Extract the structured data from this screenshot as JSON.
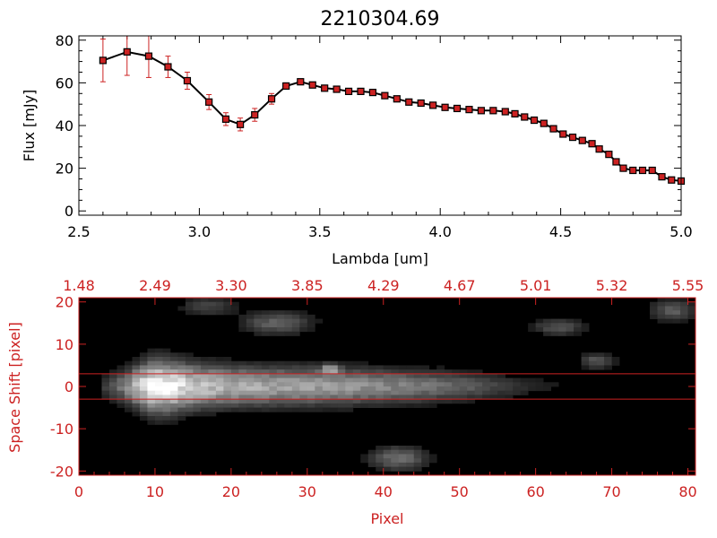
{
  "chart_data": [
    {
      "type": "line",
      "title": "2210304.69",
      "xlabel": "Lambda [um]",
      "ylabel": "Flux [mJy]",
      "xlim": [
        2.5,
        5.0
      ],
      "ylim": [
        -2,
        82
      ],
      "xticks": [
        "2.5",
        "3.0",
        "3.5",
        "4.0",
        "4.5",
        "5.0"
      ],
      "yticks": [
        "0",
        "20",
        "40",
        "60",
        "80"
      ],
      "grid": false,
      "line_color": "#000000",
      "marker_color": "#cc2222",
      "errorbar_color": "#cc2222",
      "series": [
        {
          "x": [
            2.6,
            2.7,
            2.79,
            2.87,
            2.95,
            3.04,
            3.11,
            3.17,
            3.23,
            3.3,
            3.36,
            3.42,
            3.47,
            3.52,
            3.57,
            3.62,
            3.67,
            3.72,
            3.77,
            3.82,
            3.87,
            3.92,
            3.97,
            4.02,
            4.07,
            4.12,
            4.17,
            4.22,
            4.27,
            4.31,
            4.35,
            4.39,
            4.43,
            4.47,
            4.51,
            4.55,
            4.59,
            4.63,
            4.66,
            4.7,
            4.73,
            4.76,
            4.8,
            4.84,
            4.88,
            4.92,
            4.96,
            5.0
          ],
          "y": [
            70.5,
            74.5,
            72.5,
            67.5,
            61,
            51,
            43,
            40.5,
            45,
            52.5,
            58.5,
            60.5,
            59,
            57.5,
            57,
            56,
            56,
            55.5,
            54,
            52.5,
            51,
            50.5,
            49.5,
            48.5,
            48,
            47.5,
            47,
            47,
            46.5,
            45.5,
            44,
            42.5,
            41,
            38.5,
            36,
            34.5,
            33,
            31.5,
            29,
            26.5,
            23,
            20,
            19,
            19,
            19,
            16,
            14.5,
            14
          ],
          "yerr": [
            10,
            11,
            10,
            5,
            4,
            3.5,
            3,
            3,
            3,
            2.5,
            1.5,
            1,
            1,
            1,
            1,
            1,
            1,
            1,
            1,
            1,
            1,
            1,
            1,
            1,
            1,
            1,
            1,
            1,
            1,
            1,
            1,
            1,
            1,
            1,
            1,
            1,
            1,
            1,
            1,
            1,
            1,
            1,
            1,
            1,
            1,
            1,
            1,
            1
          ]
        }
      ]
    },
    {
      "type": "heatmap",
      "xlabel": "Pixel",
      "ylabel": "Space Shift [pixel]",
      "xlim": [
        0,
        81
      ],
      "ylim": [
        -21,
        21
      ],
      "xticks": [
        "0",
        "10",
        "20",
        "30",
        "40",
        "50",
        "60",
        "70",
        "80"
      ],
      "yticks": [
        "-20",
        "-10",
        "0",
        "10",
        "20"
      ],
      "top_axis_labels": [
        "1.48",
        "2.49",
        "3.30",
        "3.85",
        "4.29",
        "4.67",
        "5.01",
        "5.32",
        "5.55"
      ],
      "axis_color": "#cc2222",
      "background_color": "#000000",
      "extraction_lines": [
        3,
        -3
      ],
      "colormap": "grayscale",
      "trace": {
        "y_center": 0,
        "peak_x": 10,
        "peak_intensity": 1.0,
        "profile": [
          [
            3,
            0.12
          ],
          [
            6,
            0.4
          ],
          [
            8,
            0.75
          ],
          [
            10,
            1.0
          ],
          [
            12,
            0.95
          ],
          [
            15,
            0.75
          ],
          [
            20,
            0.62
          ],
          [
            25,
            0.58
          ],
          [
            30,
            0.56
          ],
          [
            35,
            0.52
          ],
          [
            40,
            0.45
          ],
          [
            45,
            0.38
          ],
          [
            50,
            0.3
          ],
          [
            55,
            0.18
          ],
          [
            60,
            0.08
          ],
          [
            66,
            0.03
          ]
        ]
      },
      "blobs": [
        {
          "x": 26,
          "y": 15,
          "intensity": 0.3,
          "sx": 3.0,
          "sy": 1.8
        },
        {
          "x": 17,
          "y": 19,
          "intensity": 0.18,
          "sx": 2.5,
          "sy": 1.5
        },
        {
          "x": 42,
          "y": -17,
          "intensity": 0.35,
          "sx": 2.5,
          "sy": 1.8
        },
        {
          "x": 63,
          "y": 14,
          "intensity": 0.25,
          "sx": 2.2,
          "sy": 1.3
        },
        {
          "x": 68,
          "y": 6,
          "intensity": 0.25,
          "sx": 1.5,
          "sy": 1.2
        },
        {
          "x": 78,
          "y": 18,
          "intensity": 0.28,
          "sx": 2.0,
          "sy": 1.6
        },
        {
          "x": 33,
          "y": 4,
          "intensity": 0.45,
          "sx": 0.8,
          "sy": 0.8
        }
      ]
    }
  ]
}
